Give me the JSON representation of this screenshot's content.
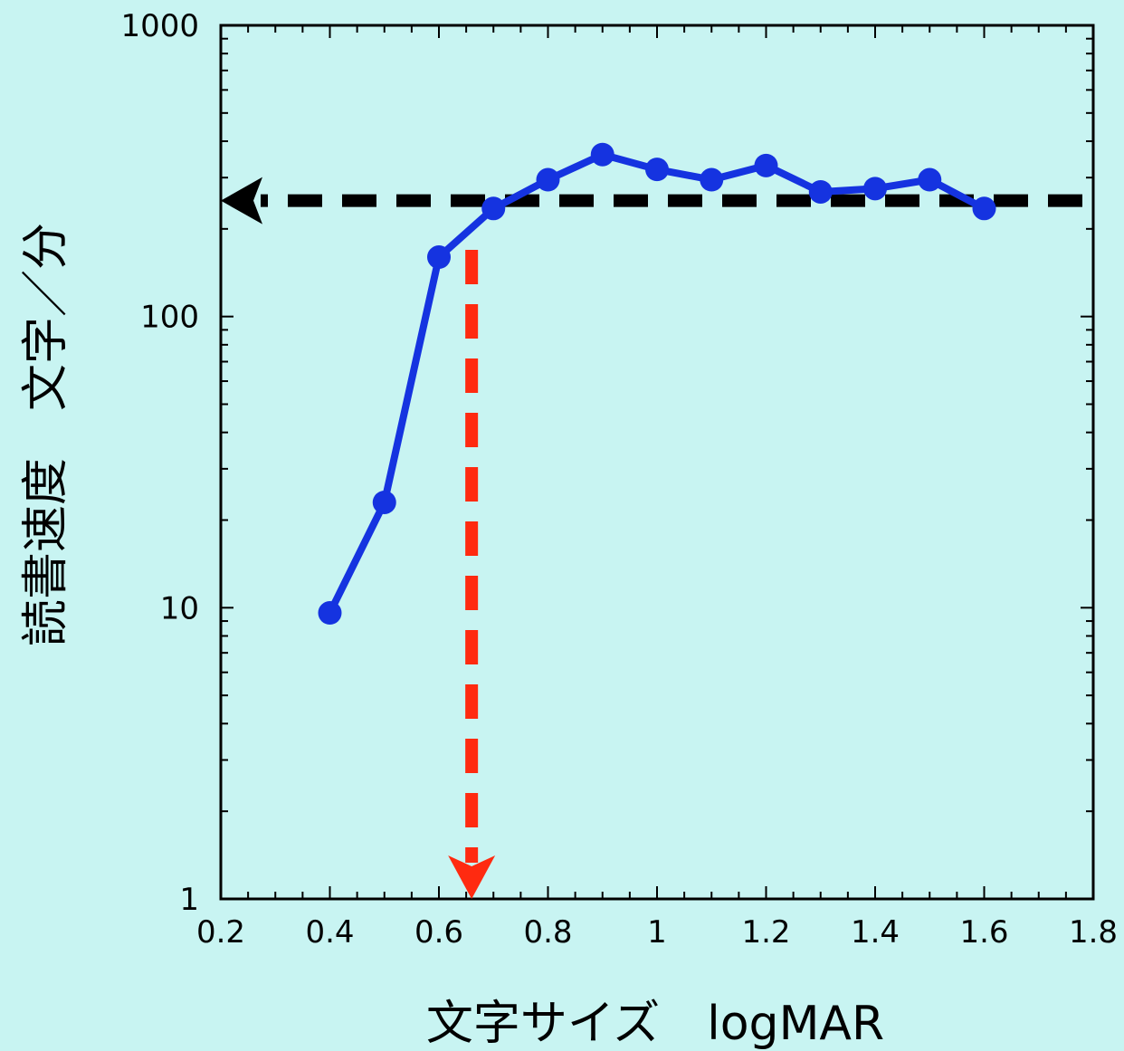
{
  "chart_data": {
    "type": "line",
    "xlabel": "文字サイズ　logMAR",
    "ylabel": "読書速度　文字／分",
    "xlim": [
      0.2,
      1.8
    ],
    "ylim": [
      1,
      1000
    ],
    "y_scale": "log",
    "x_ticks": [
      "0.2",
      "0.4",
      "0.6",
      "0.8",
      "1",
      "1.2",
      "1.4",
      "1.6",
      "1.8"
    ],
    "y_ticks": [
      "1",
      "10",
      "100",
      "1000"
    ],
    "grid": false,
    "series": [
      {
        "x": [
          0.4,
          0.5,
          0.6,
          0.7,
          0.8,
          0.9,
          1.0,
          1.1,
          1.2,
          1.3,
          1.4,
          1.5,
          1.6
        ],
        "y": [
          9.6,
          23,
          160,
          235,
          295,
          360,
          320,
          295,
          330,
          268,
          275,
          295,
          235
        ],
        "color": "#1533e0"
      }
    ],
    "annotations": [
      {
        "kind": "horizontal-dashed-arrow",
        "y": 250,
        "x_from": 1.8,
        "x_to": 0.2,
        "color": "#000000"
      },
      {
        "kind": "vertical-dashed-arrow",
        "x": 0.66,
        "y_from": 160,
        "y_to": 1,
        "color": "#ff2a10"
      }
    ]
  }
}
